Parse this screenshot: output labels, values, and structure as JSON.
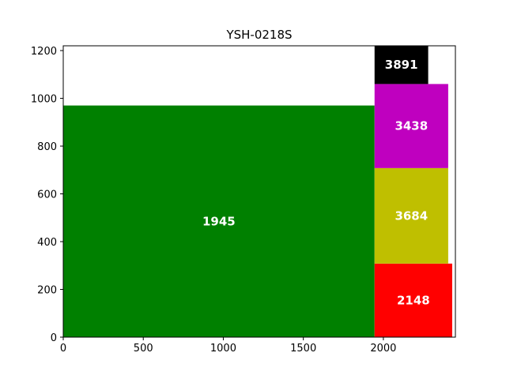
{
  "chart_data": {
    "type": "bar",
    "title": "YSH-0218S",
    "xlabel": "",
    "ylabel": "",
    "xlim": [
      0,
      2450
    ],
    "ylim": [
      0,
      1220
    ],
    "x_ticks": [
      "0",
      "500",
      "1000",
      "1500",
      "2000"
    ],
    "y_ticks": [
      "0",
      "200",
      "400",
      "600",
      "800",
      "1000",
      "1200"
    ],
    "grid": false,
    "rectangles": [
      {
        "label": "1945",
        "x0": 0,
        "x1": 1945,
        "y0": 0,
        "y1": 970,
        "color": "#008000"
      },
      {
        "label": "2148",
        "x0": 1945,
        "x1": 2430,
        "y0": 0,
        "y1": 308,
        "color": "#ff0000"
      },
      {
        "label": "3684",
        "x0": 1945,
        "x1": 2405,
        "y0": 308,
        "y1": 708,
        "color": "#bfbf00"
      },
      {
        "label": "3438",
        "x0": 1945,
        "x1": 2405,
        "y0": 708,
        "y1": 1060,
        "color": "#bf00bf"
      },
      {
        "label": "3891",
        "x0": 1945,
        "x1": 2280,
        "y0": 1060,
        "y1": 1220,
        "color": "#000000"
      }
    ]
  }
}
